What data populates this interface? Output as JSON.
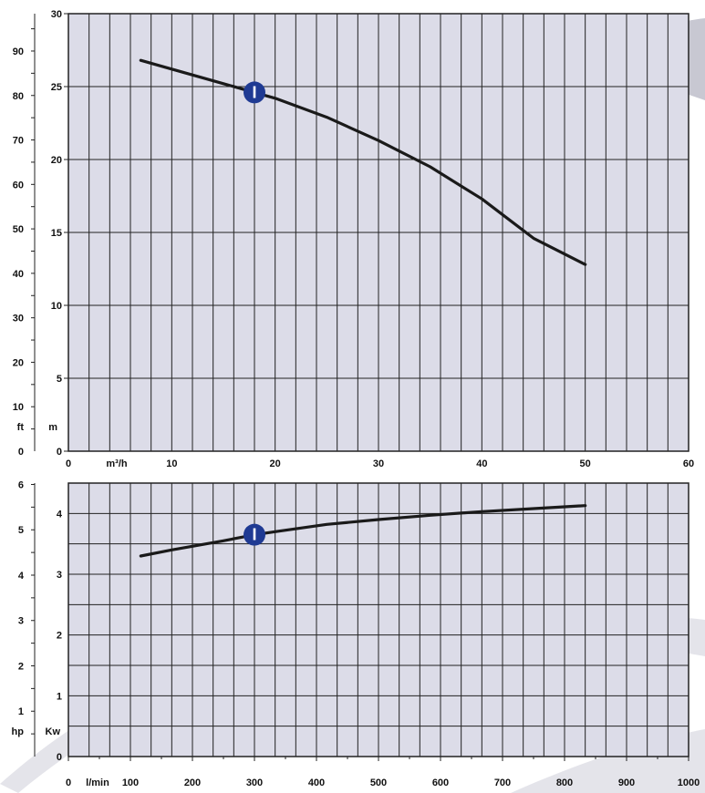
{
  "chart_data": [
    {
      "type": "line",
      "name": "head-curve",
      "series": [
        {
          "label": "I",
          "x": [
            7,
            10,
            15,
            18,
            20,
            25,
            30,
            35,
            40,
            45,
            50
          ],
          "y": [
            26.8,
            26.2,
            25.2,
            24.6,
            24.2,
            22.9,
            21.3,
            19.5,
            17.3,
            14.6,
            12.8
          ]
        }
      ],
      "marker": {
        "label": "I",
        "x": 18,
        "y": 24.6
      },
      "x_axis": {
        "unit": "m³/h",
        "range": [
          0,
          60
        ],
        "ticks": [
          "0",
          "10",
          "20",
          "30",
          "40",
          "50",
          "60"
        ]
      },
      "y_axis_left": {
        "unit": "ft",
        "range": [
          0,
          98.4
        ],
        "ticks": [
          "0",
          "10",
          "20",
          "30",
          "40",
          "50",
          "60",
          "70",
          "80",
          "90"
        ]
      },
      "y_axis_right": {
        "unit": "m",
        "range": [
          0,
          30
        ],
        "ticks": [
          "0",
          "5",
          "10",
          "15",
          "20",
          "25",
          "30"
        ]
      },
      "grid": true
    },
    {
      "type": "line",
      "name": "power-curve",
      "series": [
        {
          "label": "I",
          "x": [
            7,
            10,
            15,
            18,
            20,
            25,
            30,
            35,
            40,
            45,
            50
          ],
          "y": [
            3.3,
            3.4,
            3.55,
            3.65,
            3.7,
            3.82,
            3.9,
            3.97,
            4.03,
            4.08,
            4.13
          ]
        }
      ],
      "marker": {
        "label": "I",
        "x": 18,
        "y": 3.65
      },
      "x_axis": {
        "unit": "l/min",
        "range": [
          0,
          1000
        ],
        "ticks": [
          "0",
          "100",
          "200",
          "300",
          "400",
          "500",
          "600",
          "700",
          "800",
          "900",
          "1000"
        ]
      },
      "y_axis_left": {
        "unit": "hp",
        "range": [
          0,
          6
        ],
        "ticks": [
          "1",
          "2",
          "3",
          "4",
          "5",
          "6"
        ]
      },
      "y_axis_right": {
        "unit": "Kw",
        "range": [
          0,
          4.5
        ],
        "ticks": [
          "0",
          "1",
          "2",
          "3",
          "4"
        ]
      },
      "grid": true
    }
  ],
  "colors": {
    "plot_bg": "#dcdce8",
    "grid": "#222222",
    "curve": "#1a1a1a",
    "marker": "#1f3a93",
    "swoosh": "#c8c8d2"
  }
}
